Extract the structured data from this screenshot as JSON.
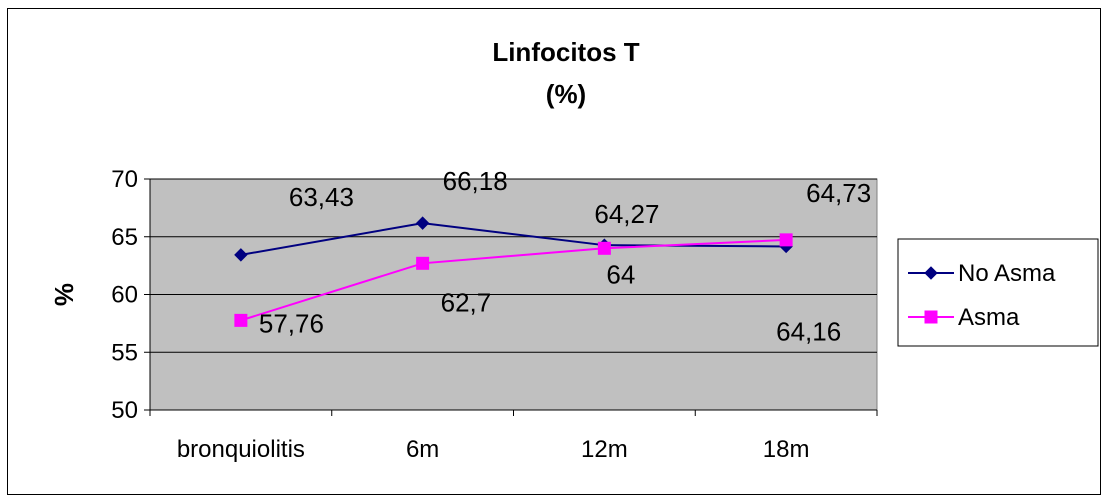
{
  "chart_data": {
    "type": "line",
    "title": [
      "Linfocitos T",
      "(%)"
    ],
    "ylabel": "%",
    "xlabel": "",
    "categories": [
      "bronquiolitis",
      "6m",
      "12m",
      "18m"
    ],
    "ylim": [
      50,
      70
    ],
    "yticks": [
      50,
      55,
      60,
      65,
      70
    ],
    "grid": true,
    "legend_position": "right",
    "series": [
      {
        "name": "No Asma",
        "values": [
          63.43,
          66.18,
          64.27,
          64.16
        ],
        "labels": [
          "63,43",
          "66,18",
          "64,27",
          "64,16"
        ],
        "color": "#000080",
        "marker": "diamond"
      },
      {
        "name": "Asma",
        "values": [
          57.76,
          62.7,
          64,
          64.73
        ],
        "labels": [
          "57,76",
          "62,7",
          "64",
          "64,73"
        ],
        "color": "#FF00FF",
        "marker": "square"
      }
    ],
    "plot_background": "#C0C0C0"
  }
}
